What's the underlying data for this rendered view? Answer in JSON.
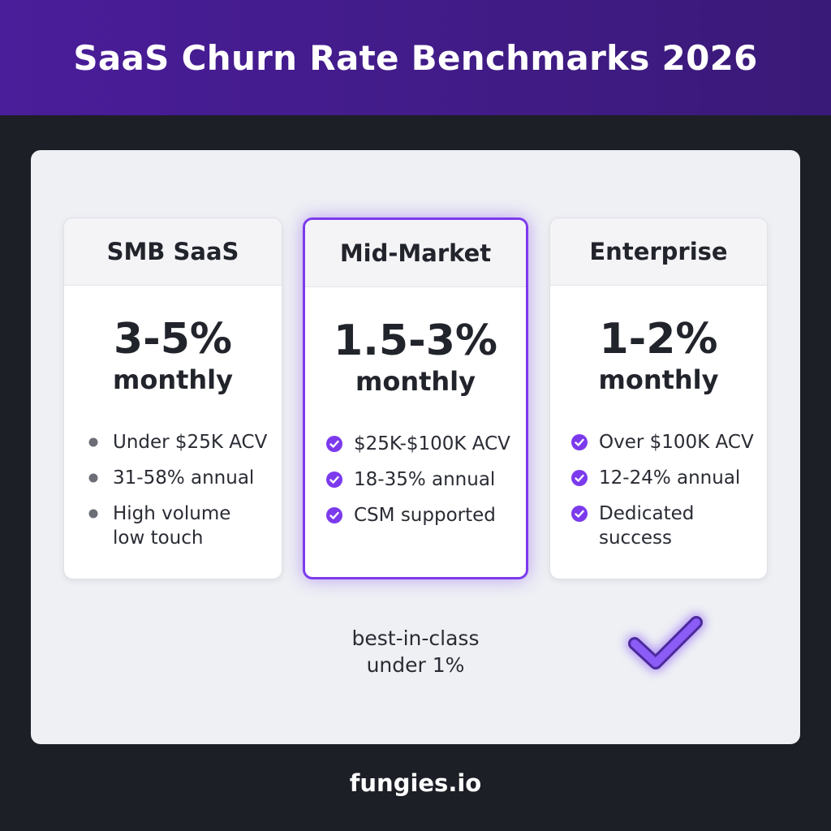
{
  "header": {
    "title": "SaaS Churn Rate Benchmarks 2026"
  },
  "cards": [
    {
      "name": "SMB SaaS",
      "rate": "3-5%",
      "period": "monthly",
      "features": [
        [
          "Under $25K ACV"
        ],
        [
          "31-58% annual"
        ],
        [
          "High volume",
          "low touch"
        ]
      ]
    },
    {
      "name": "Mid-Market",
      "rate": "1.5-3%",
      "period": "monthly",
      "features": [
        [
          "$25K-$100K ACV"
        ],
        [
          "18-35% annual"
        ],
        [
          "CSM supported"
        ]
      ]
    },
    {
      "name": "Enterprise",
      "rate": "1-2%",
      "period": "monthly",
      "features": [
        [
          "Over $100K ACV"
        ],
        [
          "12-24% annual"
        ],
        [
          "Dedicated",
          "success"
        ]
      ]
    }
  ],
  "note": [
    "best-in-class",
    "under 1%"
  ],
  "footer": "fungies.io"
}
